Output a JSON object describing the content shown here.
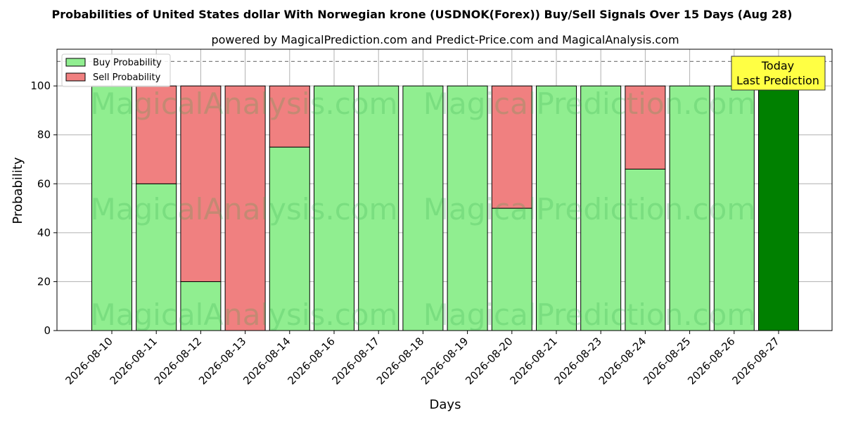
{
  "chart_data": {
    "type": "bar",
    "title": "Probabilities of United States dollar With Norwegian krone (USDNOK(Forex)) Buy/Sell Signals Over 15 Days (Aug 28)",
    "subtitle": "powered by MagicalPrediction.com and Predict-Price.com and MagicalAnalysis.com",
    "xlabel": "Days",
    "ylabel": "Probability",
    "ylim": [
      0,
      115
    ],
    "yticks": [
      0,
      20,
      40,
      60,
      80,
      100
    ],
    "grid": true,
    "legend_position": "top-left",
    "reference_line": 110,
    "categories": [
      "2026-08-10",
      "2026-08-11",
      "2026-08-12",
      "2026-08-13",
      "2026-08-14",
      "2026-08-16",
      "2026-08-17",
      "2026-08-18",
      "2026-08-19",
      "2026-08-20",
      "2026-08-21",
      "2026-08-23",
      "2026-08-24",
      "2026-08-25",
      "2026-08-26",
      "2026-08-27"
    ],
    "series": [
      {
        "name": "Buy Probability",
        "color": "#90ee90",
        "values": [
          100,
          60,
          20,
          0,
          75,
          100,
          100,
          100,
          100,
          50,
          100,
          100,
          66,
          100,
          100,
          100
        ]
      },
      {
        "name": "Sell Probability",
        "color": "#f08080",
        "values": [
          0,
          40,
          80,
          100,
          25,
          0,
          0,
          0,
          0,
          50,
          0,
          0,
          34,
          0,
          0,
          0
        ]
      }
    ],
    "highlight": {
      "index": 15,
      "color": "#008000"
    },
    "annotation": {
      "line1": "Today",
      "line2": "Last Prediction",
      "color": "#ffff44"
    },
    "watermarks": [
      "MagicalAnalysis.com",
      "MagicalPrediction.com"
    ]
  }
}
